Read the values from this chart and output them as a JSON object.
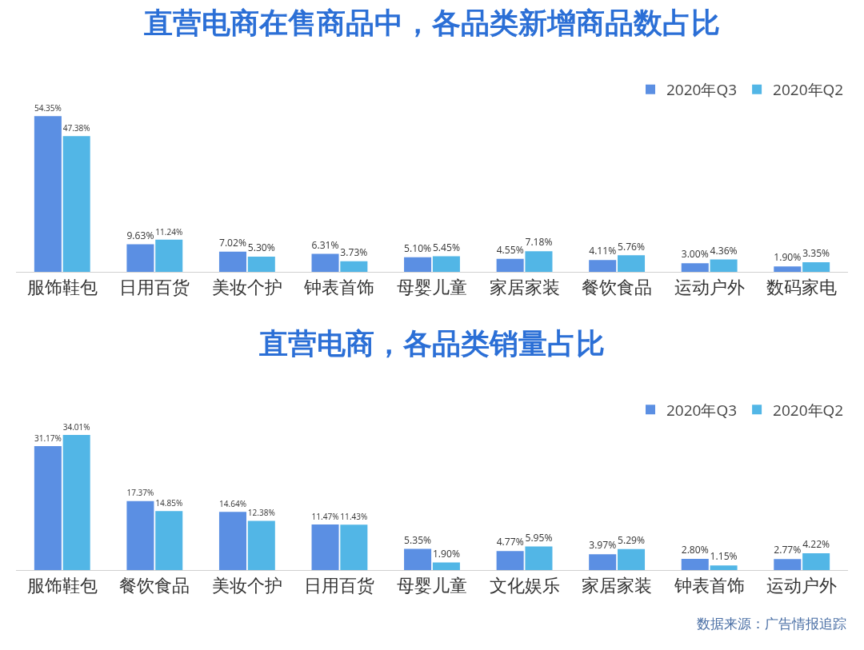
{
  "chart_data": [
    {
      "type": "bar",
      "title": "直营电商在售商品中，各品类新增商品数占比",
      "categories": [
        "服饰鞋包",
        "日用百货",
        "美妆个护",
        "钟表首饰",
        "母婴儿童",
        "家居家装",
        "餐饮食品",
        "运动户外",
        "数码家电"
      ],
      "legend": "top right",
      "grid": false,
      "series": [
        {
          "name": "2020年Q3",
          "color": "#5b8fe3",
          "values": [
            54.35,
            9.63,
            7.02,
            6.31,
            5.1,
            4.55,
            4.11,
            3.0,
            1.9
          ],
          "value_labels": [
            "54.35%",
            "9.63%",
            "7.02%",
            "6.31%",
            "5.10%",
            "4.55%",
            "4.11%",
            "3.00%",
            "1.90%"
          ]
        },
        {
          "name": "2020年Q2",
          "color": "#52b6e6",
          "values": [
            47.38,
            11.24,
            5.3,
            3.73,
            5.45,
            7.18,
            5.76,
            4.36,
            3.35
          ],
          "value_labels": [
            "47.38%",
            "11.24%",
            "5.30%",
            "3.73%",
            "5.45%",
            "7.18%",
            "5.76%",
            "4.36%",
            "3.35%"
          ]
        }
      ]
    },
    {
      "type": "bar",
      "title": "直营电商，各品类销量占比",
      "categories": [
        "服饰鞋包",
        "餐饮食品",
        "美妆个护",
        "日用百货",
        "母婴儿童",
        "文化娱乐",
        "家居家装",
        "钟表首饰",
        "运动户外"
      ],
      "legend": "top right",
      "grid": false,
      "annotations": [
        "数据来源：广告情报追踪"
      ],
      "series": [
        {
          "name": "2020年Q3",
          "color": "#5b8fe3",
          "values": [
            31.17,
            17.37,
            14.64,
            11.47,
            5.35,
            4.77,
            3.97,
            2.8,
            2.77
          ],
          "value_labels": [
            "31.17%",
            "17.37%",
            "14.64%",
            "11.47%",
            "5.35%",
            "4.77%",
            "3.97%",
            "2.80%",
            "2.77%"
          ]
        },
        {
          "name": "2020年Q2",
          "color": "#52b6e6",
          "values": [
            34.01,
            14.85,
            12.38,
            11.43,
            1.9,
            5.95,
            5.29,
            1.15,
            4.22
          ],
          "value_labels": [
            "34.01%",
            "14.85%",
            "12.38%",
            "11.43%",
            "1.90%",
            "5.95%",
            "5.29%",
            "1.15%",
            "4.22%"
          ]
        }
      ]
    }
  ]
}
